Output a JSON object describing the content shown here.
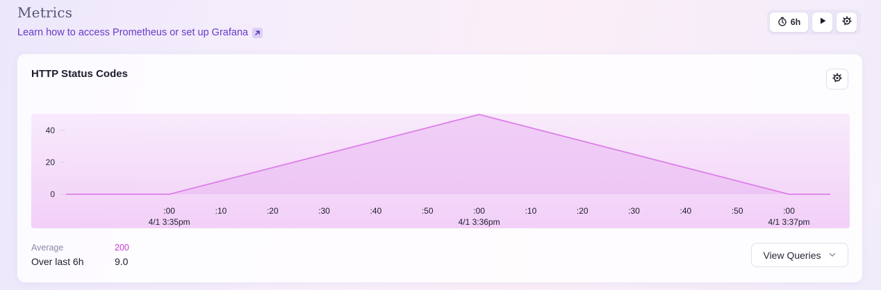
{
  "header": {
    "title": "Metrics",
    "docs_link": "Learn how to access Prometheus or set up Grafana"
  },
  "toolbar": {
    "time_range": "6h",
    "icons": [
      "timer-icon",
      "play-icon",
      "grafana-icon"
    ]
  },
  "card": {
    "title": "HTTP Status Codes",
    "view_queries_label": "View Queries",
    "stats": {
      "average_label": "Average",
      "period_label": "Over last 6h",
      "series_code": "200",
      "series_value": "9.0"
    }
  },
  "colors": {
    "accent": "#6b39c9",
    "series_line": "#dc7fe8",
    "series_fill": "#eab8f2",
    "series_label": "#c53cd3"
  },
  "chart_data": {
    "type": "area",
    "title": "HTTP Status Codes",
    "xlabel": "",
    "ylabel": "",
    "x_unit": "seconds from 4/1 3:35pm",
    "x": [
      -20,
      0,
      60,
      120,
      128
    ],
    "series": [
      {
        "name": "200",
        "values": [
          0,
          0,
          50,
          0,
          0
        ]
      }
    ],
    "xlim": [
      -20,
      128
    ],
    "ylim": [
      0,
      60
    ],
    "y_ticks": [
      0,
      20,
      40
    ],
    "x_ticks": [
      {
        "x": 0,
        "label": ":00",
        "sublabel": "4/1 3:35pm"
      },
      {
        "x": 10,
        "label": ":10"
      },
      {
        "x": 20,
        "label": ":20"
      },
      {
        "x": 30,
        "label": ":30"
      },
      {
        "x": 40,
        "label": ":40"
      },
      {
        "x": 50,
        "label": ":50"
      },
      {
        "x": 60,
        "label": ":00",
        "sublabel": "4/1 3:36pm"
      },
      {
        "x": 70,
        "label": ":10"
      },
      {
        "x": 80,
        "label": ":20"
      },
      {
        "x": 90,
        "label": ":30"
      },
      {
        "x": 100,
        "label": ":40"
      },
      {
        "x": 110,
        "label": ":50"
      },
      {
        "x": 120,
        "label": ":00",
        "sublabel": "4/1 3:37pm"
      }
    ],
    "grid": false,
    "legend": "none"
  }
}
